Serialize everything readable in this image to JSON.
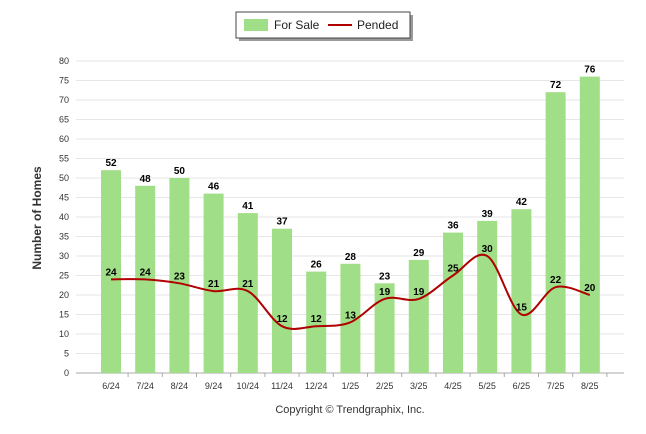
{
  "chart_data": {
    "type": "bar",
    "categories": [
      "6/24",
      "7/24",
      "8/24",
      "9/24",
      "10/24",
      "11/24",
      "12/24",
      "1/25",
      "2/25",
      "3/25",
      "4/25",
      "5/25",
      "6/25",
      "7/25",
      "8/25"
    ],
    "series": [
      {
        "name": "For Sale",
        "type": "bar",
        "color": "#a0de87",
        "values": [
          52,
          48,
          50,
          46,
          41,
          37,
          26,
          28,
          23,
          29,
          36,
          39,
          42,
          72,
          76
        ]
      },
      {
        "name": "Pended",
        "type": "line",
        "color": "#b00000",
        "values": [
          24,
          24,
          23,
          21,
          21,
          12,
          12,
          13,
          19,
          19,
          25,
          30,
          15,
          22,
          20
        ]
      }
    ],
    "title": "",
    "xlabel": "",
    "ylabel": "Number of Homes",
    "ylim": [
      0,
      80
    ],
    "yticks": [
      0,
      5,
      10,
      15,
      20,
      25,
      30,
      35,
      40,
      45,
      50,
      55,
      60,
      65,
      70,
      75,
      80
    ],
    "grid": true,
    "legend_position": "top-center",
    "copyright": "Copyright © Trendgraphix, Inc."
  }
}
